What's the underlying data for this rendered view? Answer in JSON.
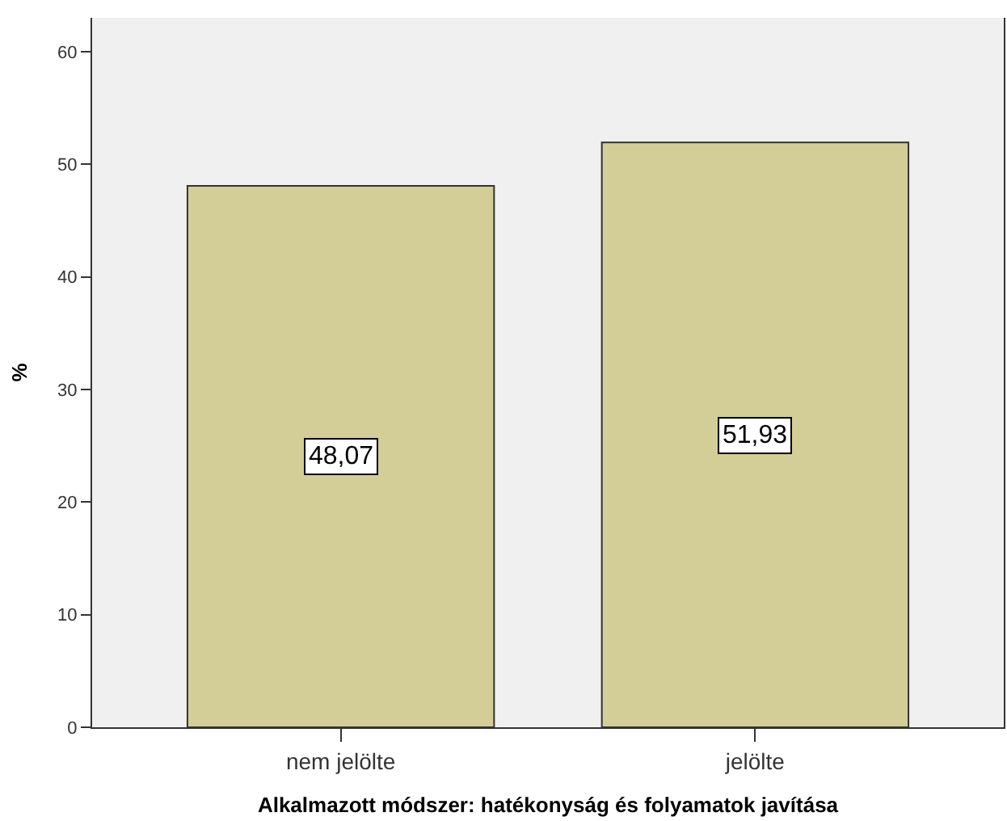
{
  "chart_data": {
    "type": "bar",
    "xlabel": "Alkalmazott módszer: hatékonyság és folyamatok javítása",
    "ylabel": "%",
    "categories": [
      "nem jelölte",
      "jelölte"
    ],
    "values": [
      48.07,
      51.93
    ],
    "value_labels": [
      "48,07",
      "51,93"
    ],
    "color": "#d3ce97",
    "ylim": [
      0,
      63
    ],
    "yticks": [
      0,
      10,
      20,
      30,
      40,
      50,
      60
    ],
    "grid": false,
    "legend": false
  }
}
